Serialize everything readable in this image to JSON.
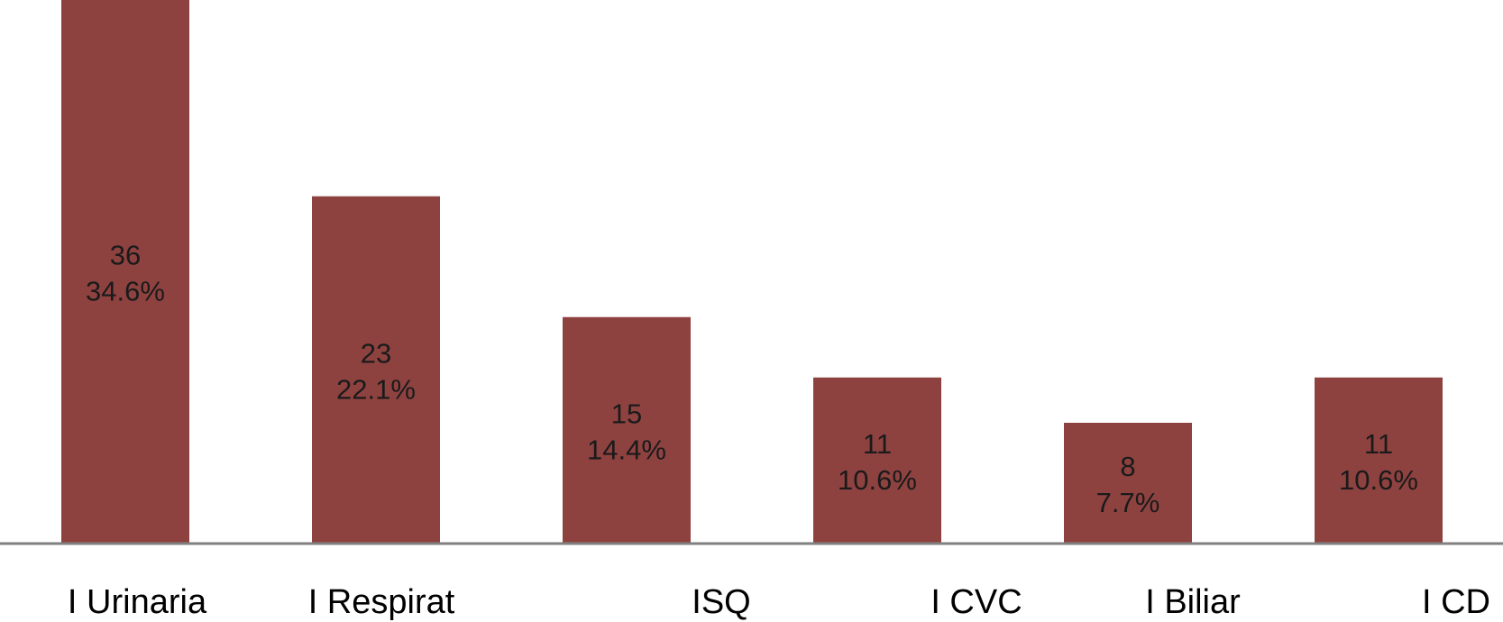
{
  "chart_data": {
    "type": "bar",
    "categories": [
      "I Urinaria",
      "I Respirat",
      "ISQ",
      "I CVC",
      "I Biliar",
      "I CD"
    ],
    "values": [
      36,
      23,
      15,
      11,
      8,
      11
    ],
    "percent_labels": [
      "34.6%",
      "22.1%",
      "14.4%",
      "10.6%",
      "7.7%",
      "10.6%"
    ],
    "title": "",
    "xlabel": "",
    "ylabel": "",
    "ylim": [
      0,
      36
    ],
    "grid": false,
    "legend": "none",
    "colors": {
      "bar": "#8e4240",
      "axis": "#808080",
      "label": "#1a1a1a"
    }
  }
}
